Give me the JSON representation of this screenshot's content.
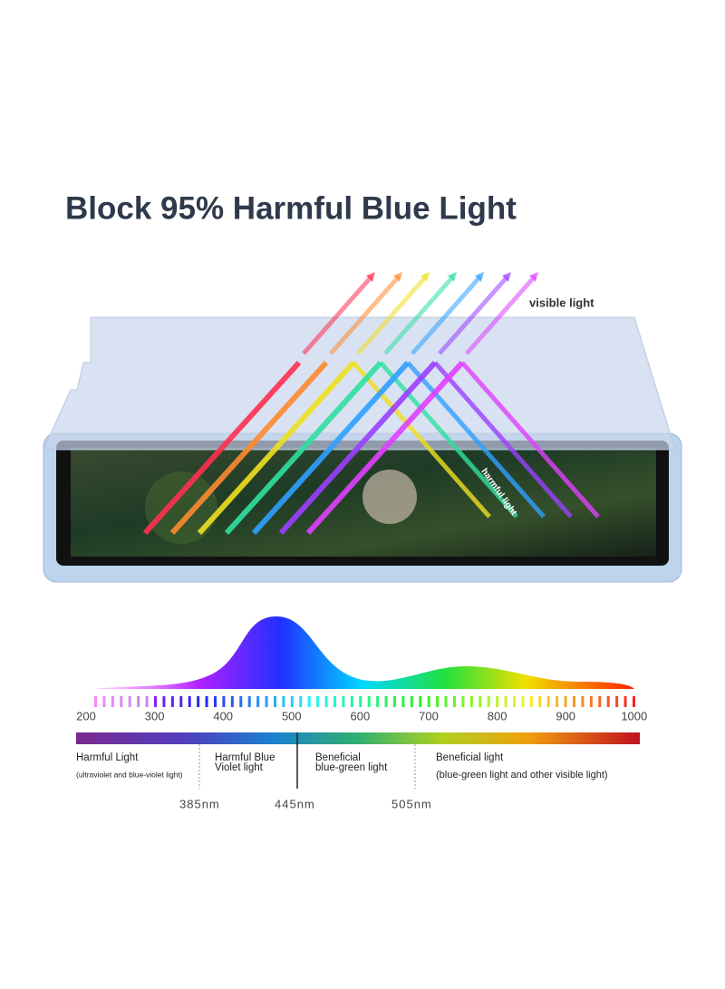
{
  "title": "Block 95% Harmful Blue Light",
  "labels": {
    "visible": "visible light",
    "harmful": "harmful light"
  },
  "spectrum": {
    "ticks": [
      200,
      300,
      400,
      500,
      600,
      700,
      800,
      900,
      1000
    ],
    "regions": [
      {
        "lines": [
          "Harmful Light"
        ],
        "note": "(ultraviolet and blue-violet light)"
      },
      {
        "lines": [
          "Harmful Blue",
          "Violet light"
        ]
      },
      {
        "lines": [
          "Beneficial",
          "blue-green light"
        ]
      },
      {
        "lines": [
          "Beneficial light"
        ],
        "note": "(blue-green light and other visible light)"
      }
    ],
    "markers": [
      "385nm",
      "445nm",
      "505nm"
    ]
  }
}
